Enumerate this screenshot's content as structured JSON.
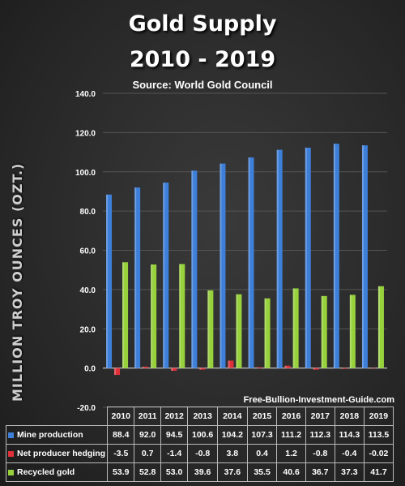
{
  "header": {
    "title_line1": "Gold Supply",
    "title_line2": "2010 - 2019",
    "source": "Source: World Gold Council",
    "watermark": "Free-Bullion-Investment-Guide.com"
  },
  "colors": {
    "mine": "#3d7fd9",
    "hedging": "#e0303a",
    "recycled": "#97d13b",
    "grid": "#555555"
  },
  "chart_data": {
    "type": "bar",
    "title": "Gold Supply 2010 - 2019",
    "ylabel": "MILLION TROY OUNCES (OZT.)",
    "ylim": [
      -20,
      140
    ],
    "yticks": [
      "140.0",
      "120.0",
      "100.0",
      "80.0",
      "60.0",
      "40.0",
      "20.0",
      "0.0",
      "-20.0"
    ],
    "categories": [
      "2010",
      "2011",
      "2012",
      "2013",
      "2014",
      "2015",
      "2016",
      "2017",
      "2018",
      "2019"
    ],
    "series": [
      {
        "name": "Mine production",
        "values": [
          88.4,
          92.0,
          94.5,
          100.6,
          104.2,
          107.3,
          111.2,
          112.3,
          114.3,
          113.5
        ],
        "labels": [
          "88.4",
          "92.0",
          "94.5",
          "100.6",
          "104.2",
          "107.3",
          "111.2",
          "112.3",
          "114.3",
          "113.5"
        ]
      },
      {
        "name": "Net producer hedging",
        "values": [
          -3.5,
          0.7,
          -1.4,
          -0.8,
          3.8,
          0.4,
          1.2,
          -0.8,
          -0.4,
          -0.02
        ],
        "labels": [
          "-3.5",
          "0.7",
          "-1.4",
          "-0.8",
          "3.8",
          "0.4",
          "1.2",
          "-0.8",
          "-0.4",
          "-0.02"
        ]
      },
      {
        "name": "Recycled gold",
        "values": [
          53.9,
          52.8,
          53.0,
          39.6,
          37.6,
          35.5,
          40.6,
          36.7,
          37.3,
          41.7
        ],
        "labels": [
          "53.9",
          "52.8",
          "53.0",
          "39.6",
          "37.6",
          "35.5",
          "40.6",
          "36.7",
          "37.3",
          "41.7"
        ]
      }
    ],
    "grid": true,
    "legend": "data-table"
  }
}
